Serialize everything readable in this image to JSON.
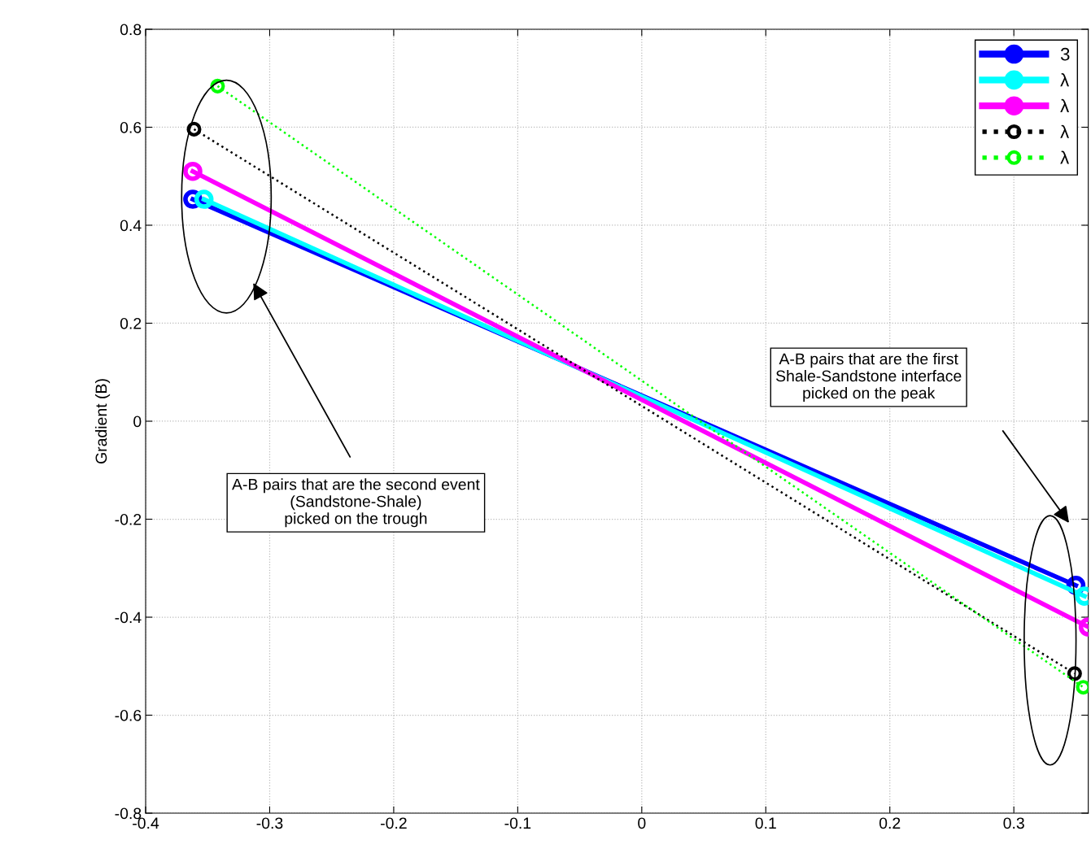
{
  "chart_data": {
    "type": "line",
    "ylabel": "Gradient (B)",
    "xlim": [
      -0.4,
      0.36
    ],
    "ylim": [
      -0.8,
      0.8
    ],
    "xticks": [
      -0.4,
      -0.3,
      -0.2,
      -0.1,
      0,
      0.1,
      0.2,
      0.3
    ],
    "yticks": [
      -0.8,
      -0.6,
      -0.4,
      -0.2,
      0,
      0.2,
      0.4,
      0.6,
      0.8
    ],
    "grid": true,
    "legend": "top right",
    "marker": "circle",
    "series": [
      {
        "name": "3",
        "color": "#0000ff",
        "x": [
          -0.362,
          0.35
        ],
        "values": [
          0.453,
          -0.335
        ],
        "line_style": "solid"
      },
      {
        "name": "λ",
        "color": "#00ffff",
        "x": [
          -0.353,
          0.357
        ],
        "values": [
          0.453,
          -0.357
        ],
        "line_style": "solid"
      },
      {
        "name": "λ",
        "color": "#ff00ff",
        "x": [
          -0.362,
          0.36
        ],
        "values": [
          0.51,
          -0.42
        ],
        "line_style": "solid"
      },
      {
        "name": "λ",
        "color": "#000000",
        "x": [
          -0.361,
          0.349
        ],
        "values": [
          0.596,
          -0.515
        ],
        "line_style": "dotted"
      },
      {
        "name": "λ",
        "color": "#00ff00",
        "x": [
          -0.342,
          0.356
        ],
        "values": [
          0.684,
          -0.543
        ],
        "line_style": "dotted"
      }
    ],
    "annotations": [
      "A-B pairs that are the second event\n(Sandstone-Shale)\npicked on the trough",
      "A-B pairs that are the first\nShale-Sandstone interface\npicked on the peak"
    ]
  }
}
